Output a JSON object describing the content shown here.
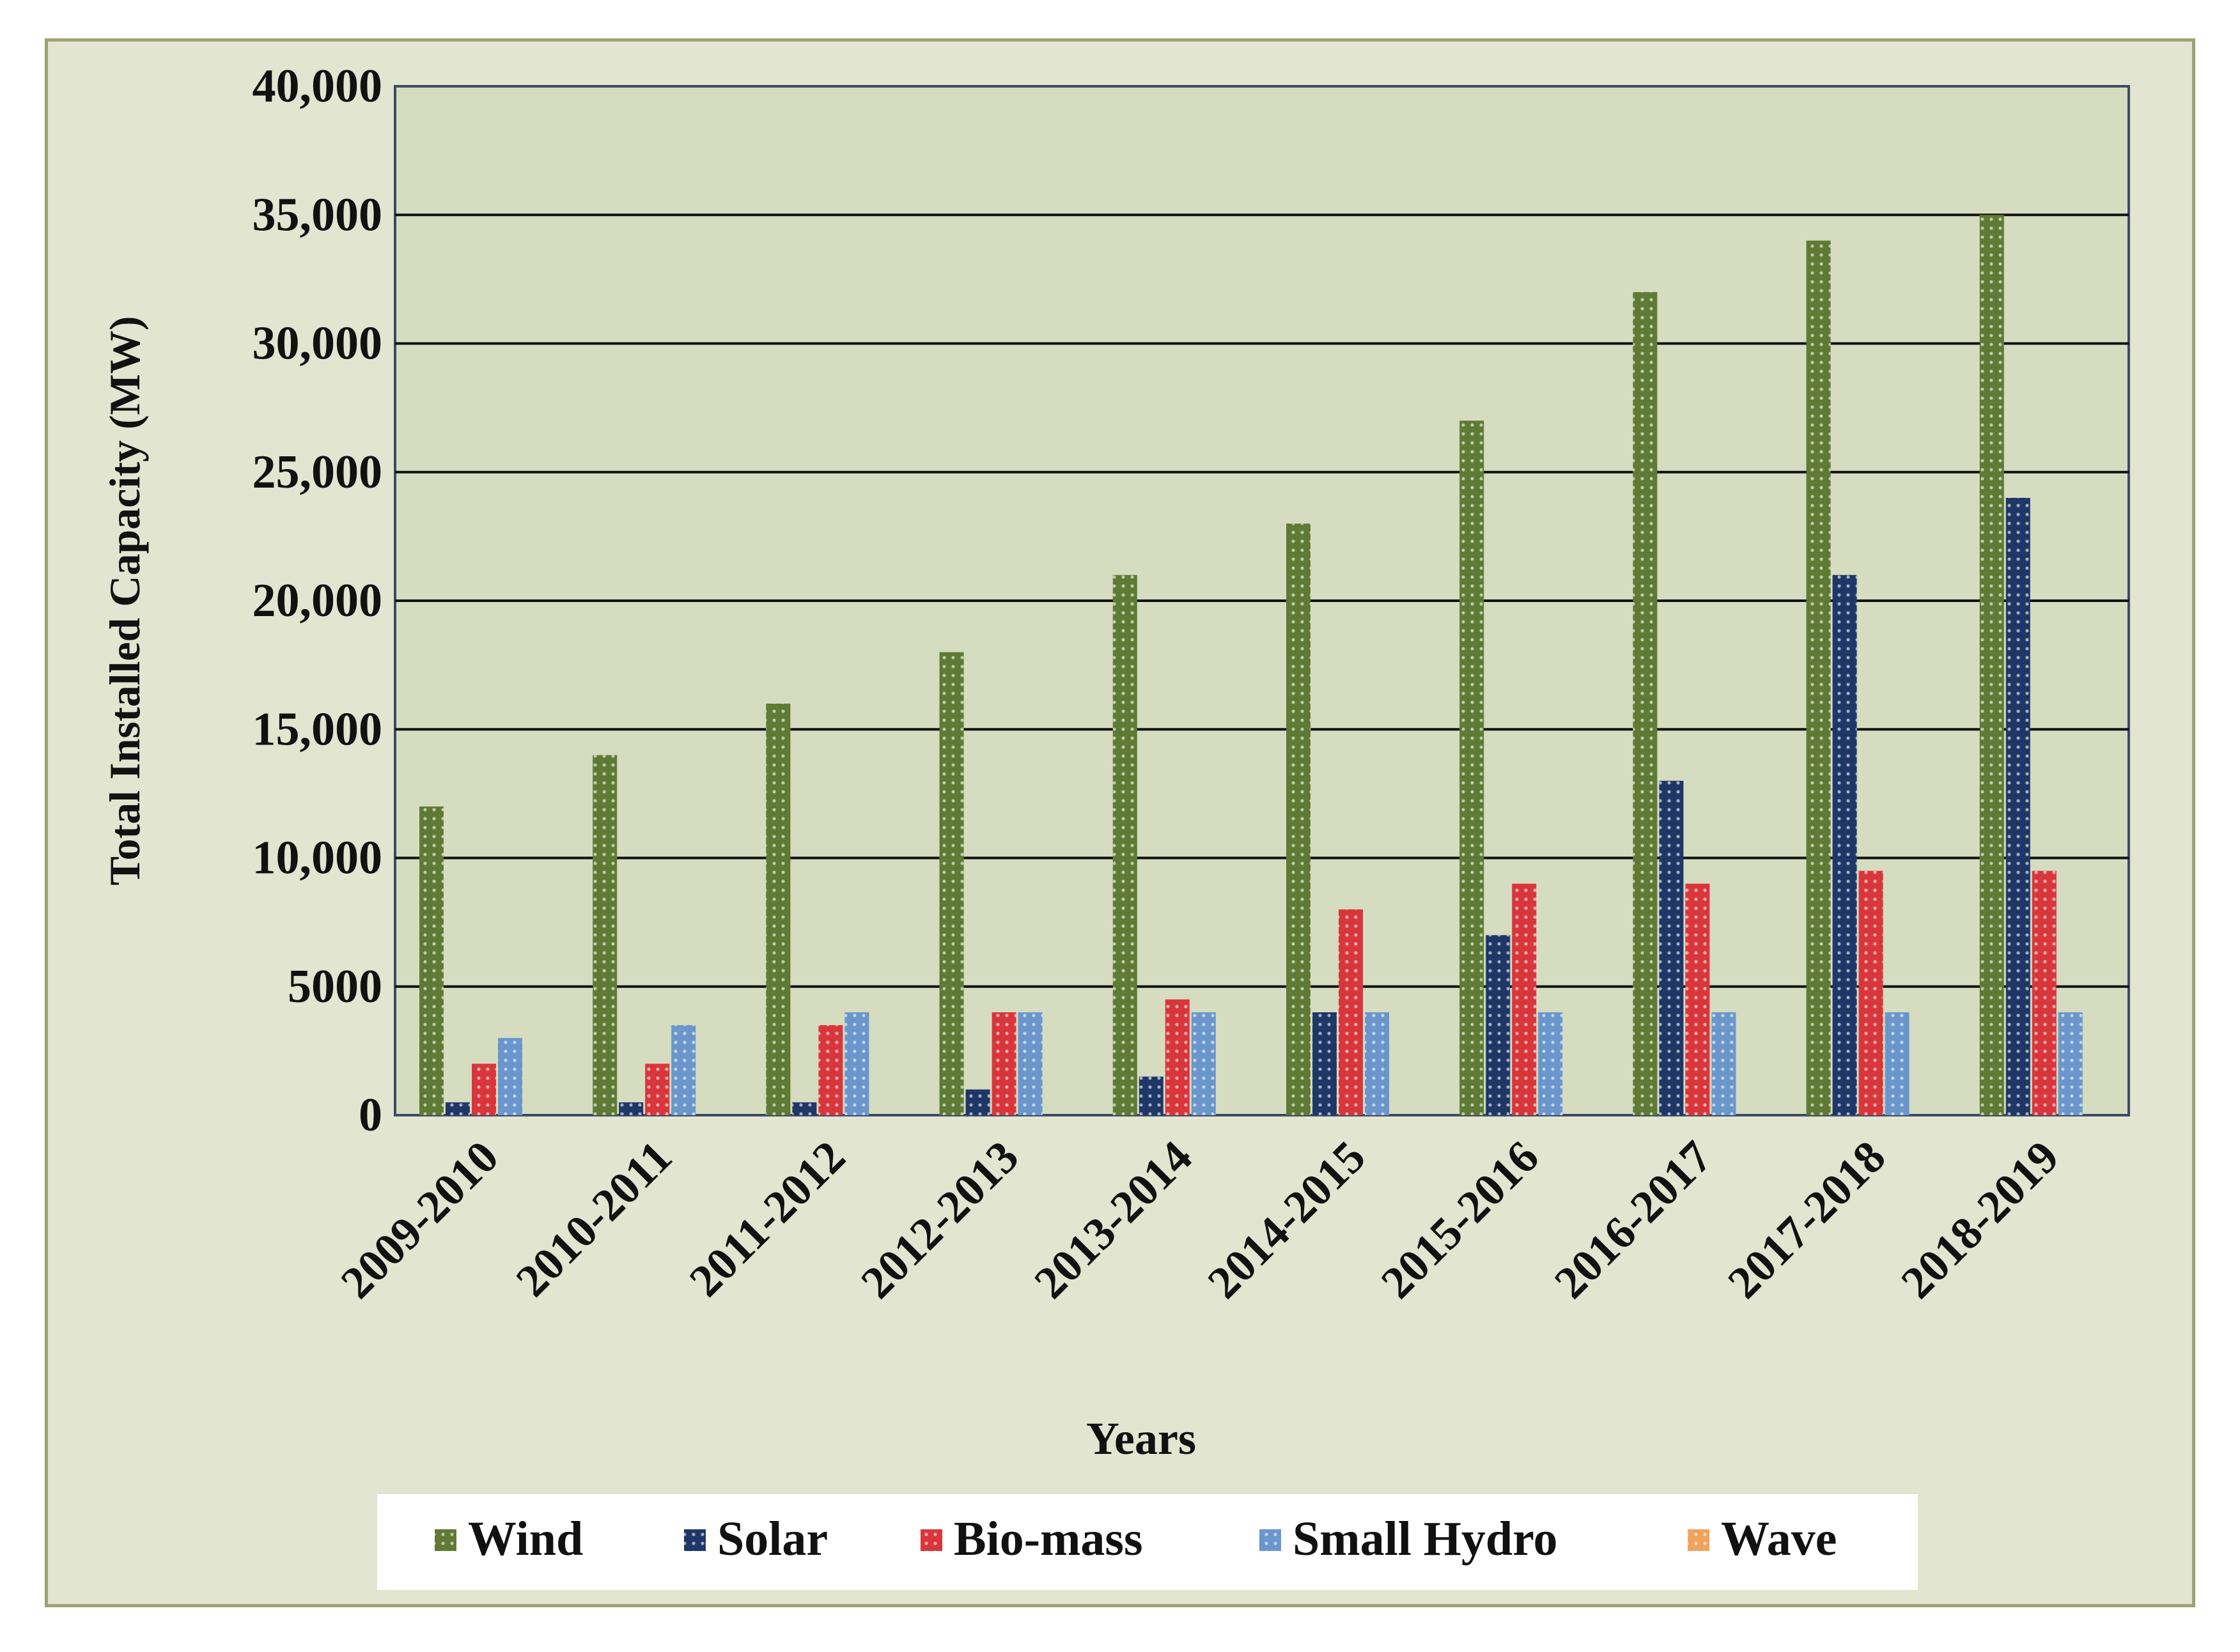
{
  "chart_data": {
    "type": "bar",
    "title": "",
    "xlabel": "Years",
    "ylabel": "Total Installed Capacity (MW)",
    "ylim": [
      0,
      40000
    ],
    "yticks": [
      0,
      5000,
      10000,
      15000,
      20000,
      25000,
      30000,
      35000,
      40000
    ],
    "ytick_labels": [
      "0",
      "5000",
      "10,000",
      "15,000",
      "20,000",
      "25,000",
      "30,000",
      "35,000",
      "40,000"
    ],
    "grid": true,
    "legend_position": "bottom",
    "categories": [
      "2009-2010",
      "2010-2011",
      "2011-2012",
      "2012-2013",
      "2013-2014",
      "2014-2015",
      "2015-2016",
      "2016-2017",
      "2017-2018",
      "2018-2019"
    ],
    "series": [
      {
        "name": "Wind",
        "color": "#5e7a34",
        "values": [
          12000,
          14000,
          16000,
          18000,
          21000,
          23000,
          27000,
          32000,
          34000,
          35000
        ]
      },
      {
        "name": "Solar",
        "color": "#1f3766",
        "values": [
          500,
          500,
          500,
          1000,
          1500,
          4000,
          7000,
          13000,
          21000,
          24000
        ]
      },
      {
        "name": "Bio-mass",
        "color": "#d9363c",
        "values": [
          2000,
          2000,
          3500,
          4000,
          4500,
          8000,
          9000,
          9000,
          9500,
          9500
        ]
      },
      {
        "name": "Small Hydro",
        "color": "#6a96cc",
        "values": [
          3000,
          3500,
          4000,
          4000,
          4000,
          4000,
          4000,
          4000,
          4000,
          4000
        ]
      },
      {
        "name": "Wave",
        "color": "#f0a35c",
        "values": [
          0,
          0,
          0,
          0,
          0,
          0,
          0,
          0,
          0,
          0
        ]
      }
    ]
  }
}
